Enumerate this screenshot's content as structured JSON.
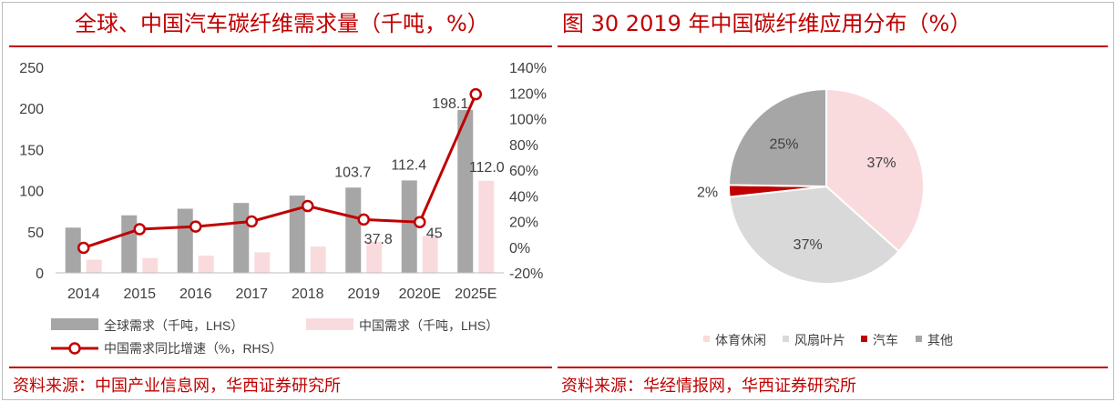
{
  "left_panel": {
    "title": "全球、中国汽车碳纤维需求量（千吨，%）",
    "source": "资料来源：中国产业信息网，华西证券研究所"
  },
  "right_panel": {
    "title": "图 30 2019 年中国碳纤维应用分布（%）",
    "source": "资料来源：华经情报网，华西证券研究所"
  },
  "chart_data": [
    {
      "type": "bar",
      "title": "",
      "categories": [
        "2014",
        "2015",
        "2016",
        "2017",
        "2018",
        "2019",
        "2020E",
        "2025E"
      ],
      "series": [
        {
          "name": "全球需求（千吨，LHS）",
          "type": "bar",
          "axis": "left",
          "color": "#a6a6a6",
          "values": [
            55,
            70,
            78,
            85,
            94,
            103.7,
            112.4,
            198.1
          ],
          "labels": [
            "",
            "",
            "",
            "",
            "",
            "103.7",
            "112.4",
            "198.1"
          ]
        },
        {
          "name": "中国需求（千吨，LHS）",
          "type": "bar",
          "axis": "left",
          "color": "#fadbdd",
          "values": [
            16,
            18,
            21,
            25,
            32,
            37.8,
            45,
            112.0
          ],
          "labels": [
            "",
            "",
            "",
            "",
            "",
            "37.8",
            "45",
            "112.0"
          ]
        },
        {
          "name": "中国需求同比增速（%，RHS）",
          "type": "line",
          "axis": "right",
          "color": "#c00000",
          "values": [
            -0.5,
            14,
            16,
            20,
            32,
            21.5,
            19.5,
            119
          ]
        }
      ],
      "y_left": {
        "min": 0,
        "max": 250,
        "ticks": [
          "0",
          "50",
          "100",
          "150",
          "200",
          "250"
        ]
      },
      "y_right": {
        "min": -20,
        "max": 140,
        "ticks": [
          "-20%",
          "0%",
          "20%",
          "40%",
          "60%",
          "80%",
          "100%",
          "120%",
          "140%"
        ]
      },
      "grid": false,
      "legend_position": "bottom"
    },
    {
      "type": "pie",
      "title": "",
      "slices": [
        {
          "name": "体育休闲",
          "value": 37,
          "label": "37%",
          "color": "#fadbdd"
        },
        {
          "name": "风扇叶片",
          "value": 37,
          "label": "37%",
          "color": "#d9d9d9"
        },
        {
          "name": "汽车",
          "value": 2,
          "label": "2%",
          "color": "#c00000"
        },
        {
          "name": "其他",
          "value": 25,
          "label": "25%",
          "color": "#a6a6a6"
        }
      ],
      "legend_position": "bottom"
    }
  ]
}
